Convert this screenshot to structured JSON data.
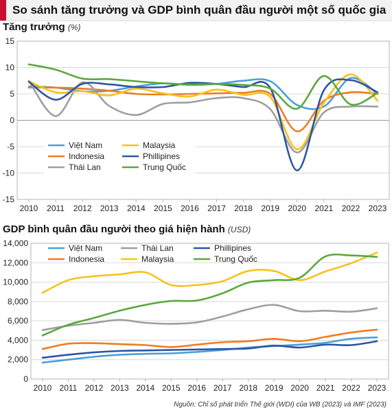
{
  "header": {
    "title": "So sánh tăng trưởng và GDP bình quân đầu người một số quốc gia"
  },
  "panels": {
    "growth": {
      "title": "Tăng trưởng",
      "unit": "(%)"
    },
    "gdp": {
      "title": "GDP bình quân đầu người theo giá hiện hành",
      "unit": "(USD)"
    }
  },
  "source": "Nguồn: Chỉ số phát triển Thế giới (WDI) của WB (2023) và IMF (2023)",
  "chart_data": [
    {
      "type": "line",
      "title": "Tăng trưởng",
      "ylabel": "(%)",
      "ylim": [
        -15,
        15
      ],
      "yticks": [
        15,
        10,
        5,
        0,
        -5,
        -10,
        -15
      ],
      "grid": true,
      "legend_position": "bottom-left",
      "categories": [
        "2010",
        "2011",
        "2012",
        "2013",
        "2014",
        "2015",
        "2016",
        "2017",
        "2018",
        "2019",
        "2020",
        "2021",
        "2022",
        "2023"
      ],
      "series": [
        {
          "name": "Việt Nam",
          "color": "#4a9fd8",
          "values": [
            6.4,
            6.2,
            5.5,
            5.6,
            6.4,
            7.0,
            6.7,
            6.9,
            7.5,
            7.4,
            2.9,
            2.6,
            8.0,
            5.0
          ]
        },
        {
          "name": "Indonesia",
          "color": "#ef7d22",
          "values": [
            6.2,
            6.2,
            6.0,
            5.6,
            5.0,
            4.9,
            5.0,
            5.1,
            5.2,
            5.0,
            -2.1,
            3.7,
            5.3,
            5.0
          ]
        },
        {
          "name": "Thái Lan",
          "color": "#9e9e9e",
          "values": [
            7.5,
            0.8,
            7.2,
            2.7,
            1.0,
            3.1,
            3.4,
            4.2,
            4.2,
            2.1,
            -6.1,
            1.5,
            2.6,
            2.6
          ]
        },
        {
          "name": "Malaysia",
          "color": "#f6c21c",
          "values": [
            7.4,
            5.3,
            5.5,
            4.7,
            6.0,
            5.1,
            4.5,
            5.8,
            4.8,
            4.4,
            -5.5,
            3.3,
            8.7,
            3.7
          ]
        },
        {
          "name": "Phillipines",
          "color": "#2b55a5",
          "values": [
            7.3,
            3.9,
            6.9,
            6.8,
            6.3,
            6.3,
            7.1,
            6.9,
            6.3,
            6.1,
            -9.5,
            5.7,
            7.6,
            5.3
          ]
        },
        {
          "name": "Trung Quốc",
          "color": "#5aa83c",
          "values": [
            10.6,
            9.6,
            7.9,
            7.8,
            7.4,
            7.0,
            6.8,
            6.9,
            6.7,
            6.0,
            2.2,
            8.4,
            3.0,
            5.2
          ]
        }
      ]
    },
    {
      "type": "line",
      "title": "GDP bình quân đầu người theo giá hiện hành",
      "ylabel": "(USD)",
      "ylim": [
        0,
        14000
      ],
      "yticks": [
        "14,000",
        "12,000",
        "10,000",
        "8,000",
        "6,000",
        "4,000",
        "2,000",
        "0"
      ],
      "grid": true,
      "legend_position": "top",
      "categories": [
        "2010",
        "2011",
        "2012",
        "2013",
        "2014",
        "2015",
        "2016",
        "2017",
        "2018",
        "2019",
        "2020",
        "2021",
        "2022",
        "2023"
      ],
      "series": [
        {
          "name": "Việt Nam",
          "color": "#4a9fd8",
          "values": [
            1700,
            2000,
            2300,
            2500,
            2600,
            2650,
            2800,
            3000,
            3250,
            3400,
            3550,
            3750,
            4150,
            4300
          ]
        },
        {
          "name": "Thái Lan",
          "color": "#9e9e9e",
          "values": [
            5050,
            5500,
            5800,
            6100,
            5800,
            5700,
            5850,
            6450,
            7200,
            7650,
            7000,
            7050,
            6950,
            7300
          ]
        },
        {
          "name": "Phillipines",
          "color": "#2b55a5",
          "values": [
            2200,
            2500,
            2750,
            2900,
            2950,
            3000,
            3050,
            3100,
            3150,
            3450,
            3250,
            3550,
            3500,
            3900
          ]
        },
        {
          "name": "Indonesia",
          "color": "#ef7d22",
          "values": [
            3100,
            3650,
            3700,
            3600,
            3500,
            3300,
            3550,
            3800,
            3900,
            4150,
            3900,
            4350,
            4800,
            5100
          ]
        },
        {
          "name": "Malaysia",
          "color": "#f6c21c",
          "values": [
            8900,
            10200,
            10600,
            10800,
            11000,
            9700,
            9700,
            10100,
            11150,
            11150,
            10200,
            11100,
            11950,
            13050
          ]
        },
        {
          "name": "Trung Quốc",
          "color": "#5aa83c",
          "values": [
            4500,
            5600,
            6300,
            7050,
            7650,
            8050,
            8100,
            8850,
            9950,
            10200,
            10450,
            12650,
            12750,
            12600
          ]
        }
      ]
    }
  ]
}
